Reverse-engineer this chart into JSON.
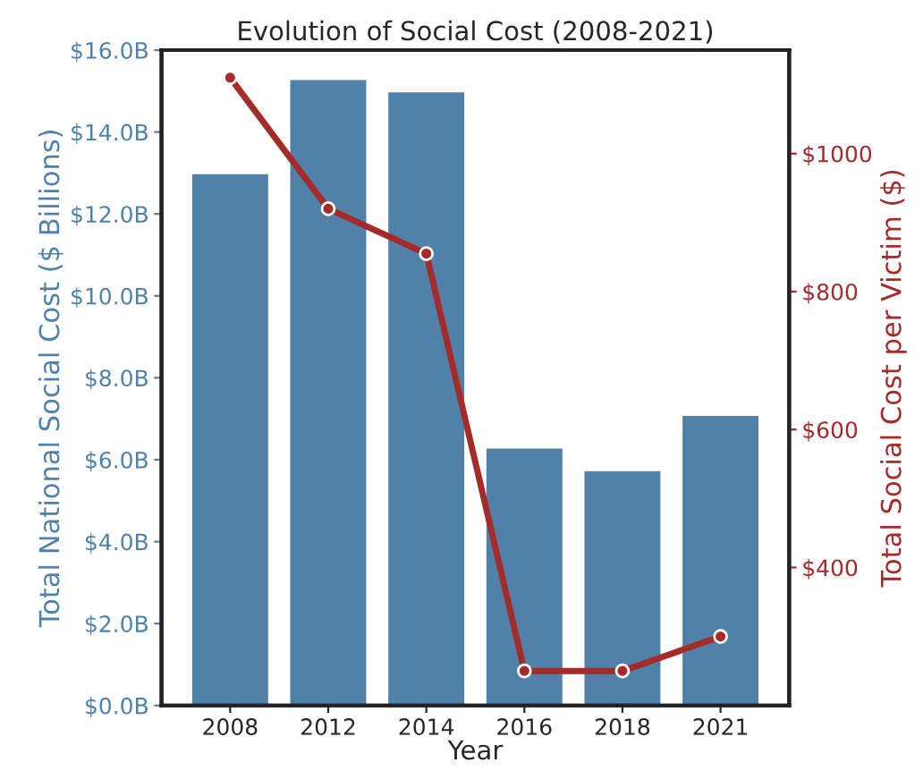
{
  "chart_data": {
    "type": "bar",
    "title": "Evolution of Social Cost (2008-2021)",
    "xlabel": "Year",
    "ylabel": "Total National Social Cost ($ Billions)",
    "y2label": "Total Social Cost per Victim ($)",
    "categories": [
      "2008",
      "2012",
      "2014",
      "2016",
      "2018",
      "2021"
    ],
    "series": [
      {
        "color": "#5181a8",
        "values": [
          13.0,
          15.3,
          15.0,
          6.3,
          5.75,
          7.1
        ]
      },
      {
        "type": "line",
        "axis": "y2",
        "color": "#a52a2a",
        "marker": "circle",
        "line_style": "solid",
        "values": [
          1110,
          920,
          855,
          250,
          250,
          300
        ]
      }
    ],
    "ylim": [
      0,
      16
    ],
    "yticks": [
      {
        "value": 0,
        "label": "$0.0B"
      },
      {
        "value": 2,
        "label": "$2.0B"
      },
      {
        "value": 4,
        "label": "$4.0B"
      },
      {
        "value": 6,
        "label": "$6.0B"
      },
      {
        "value": 8,
        "label": "$8.0B"
      },
      {
        "value": 10,
        "label": "$10.0B"
      },
      {
        "value": 12,
        "label": "$12.0B"
      },
      {
        "value": 14,
        "label": "$14.0B"
      },
      {
        "value": 16,
        "label": "$16.0B"
      }
    ],
    "y2lim": [
      200,
      1150
    ],
    "y2ticks": [
      {
        "value": 400,
        "label": "$400"
      },
      {
        "value": 600,
        "label": "$600"
      },
      {
        "value": 800,
        "label": "$800"
      },
      {
        "value": 1000,
        "label": "$1000"
      }
    ],
    "grid": false,
    "legend": false
  }
}
